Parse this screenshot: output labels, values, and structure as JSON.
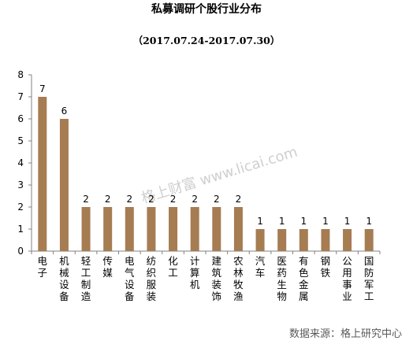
{
  "chart_data": {
    "type": "bar",
    "title": "私募调研个股行业分布",
    "subtitle": "（2017.07.24-2017.07.30）",
    "categories": [
      "电子",
      "机械设备",
      "轻工制造",
      "传媒",
      "电气设备",
      "纺织服装",
      "化工",
      "计算机",
      "建筑装饰",
      "农林牧渔",
      "汽车",
      "医药生物",
      "有色金属",
      "钢铁",
      "公用事业",
      "国防军工"
    ],
    "values": [
      7,
      6,
      2,
      2,
      2,
      2,
      2,
      2,
      2,
      2,
      1,
      1,
      1,
      1,
      1,
      1
    ],
    "xlabel": "",
    "ylabel": "",
    "ylim": [
      0,
      8
    ],
    "yticks": [
      0,
      1,
      2,
      3,
      4,
      5,
      6,
      7,
      8
    ],
    "grid": false,
    "bar_color": "#A67C52",
    "data_labels": true
  },
  "watermark": "格上财富 www.licai.com",
  "source": "数据来源：格上研究中心"
}
